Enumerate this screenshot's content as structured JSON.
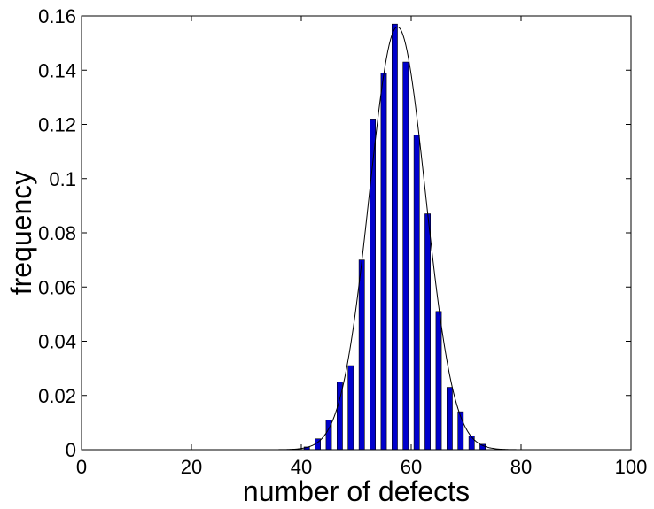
{
  "chart_data": {
    "type": "bar",
    "title": "",
    "xlabel": "number of defects",
    "ylabel": "frequency",
    "xlim": [
      0,
      100
    ],
    "ylim": [
      0,
      0.16
    ],
    "grid": false,
    "x_ticks": [
      "0",
      "20",
      "40",
      "60",
      "80",
      "100"
    ],
    "y_ticks": [
      "0",
      "0.02",
      "0.04",
      "0.06",
      "0.08",
      "0.1",
      "0.12",
      "0.14",
      "0.16"
    ],
    "x_tick_values": [
      0,
      20,
      40,
      60,
      80,
      100
    ],
    "y_tick_values": [
      0,
      0.02,
      0.04,
      0.06,
      0.08,
      0.1,
      0.12,
      0.14,
      0.16
    ],
    "bar_width": 1.0,
    "bar_color": "#0000cc",
    "bar_edge_color": "#000000",
    "bars": {
      "x": [
        41,
        43,
        45,
        47,
        49,
        51,
        53,
        55,
        57,
        59,
        61,
        63,
        65,
        67,
        69,
        71,
        73
      ],
      "y": [
        0.001,
        0.004,
        0.011,
        0.025,
        0.031,
        0.07,
        0.122,
        0.139,
        0.157,
        0.143,
        0.116,
        0.087,
        0.051,
        0.023,
        0.014,
        0.005,
        0.002
      ]
    },
    "fit_curve": {
      "type": "gaussian",
      "mean": 57.5,
      "sd": 5.1,
      "peak": 0.156,
      "color": "#000000"
    }
  }
}
